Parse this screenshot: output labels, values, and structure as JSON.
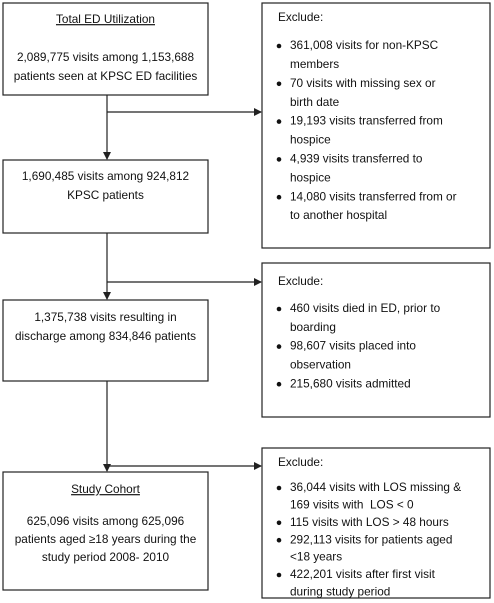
{
  "left_boxes": [
    {
      "title": "Total ED Utilization",
      "lines": [
        "2,089,775 visits among 1,153,688",
        "patients seen at KPSC ED facilities"
      ]
    },
    {
      "lines": [
        "1,690,485 visits among 924,812",
        "KPSC patients"
      ]
    },
    {
      "lines": [
        "1,375,738 visits resulting in",
        "discharge among 834,846 patients"
      ]
    },
    {
      "title": "Study Cohort",
      "lines": [
        "625,096 visits among 625,096",
        "patients aged ≥18 years during the",
        "study period 2008- 2010"
      ]
    }
  ],
  "exclusion_boxes": [
    {
      "heading": "Exclude:",
      "items": [
        [
          "361,008 visits for non-KPSC",
          "members"
        ],
        [
          "70 visits with missing sex or",
          "birth date"
        ],
        [
          "19,193 visits transferred from",
          "hospice"
        ],
        [
          "4,939 visits transferred to",
          "hospice"
        ],
        [
          "14,080 visits transferred from or",
          "to another hospital"
        ]
      ]
    },
    {
      "heading": "Exclude:",
      "items": [
        [
          "460 visits died in ED, prior to",
          "boarding"
        ],
        [
          "98,607 visits placed into",
          "observation"
        ],
        [
          "215,680 visits admitted"
        ]
      ]
    },
    {
      "heading": "Exclude:",
      "items": [
        [
          "36,044 visits with LOS missing &",
          "169 visits with  LOS < 0"
        ],
        [
          "115 visits with LOS > 48 hours"
        ],
        [
          "292,113 visits for patients aged",
          "<18 years"
        ],
        [
          "422,201 visits after first visit",
          "during study period"
        ]
      ]
    }
  ]
}
